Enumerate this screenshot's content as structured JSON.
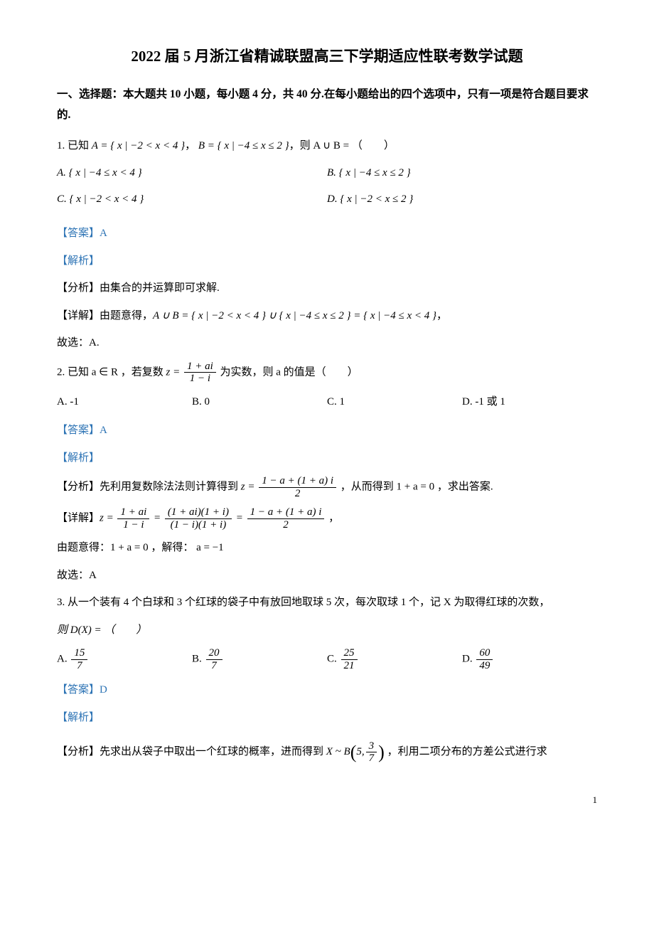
{
  "title": "2022 届 5 月浙江省精诚联盟高三下学期适应性联考数学试题",
  "section_header": "一、选择题：本大题共 10 小题，每小题 4 分，共 40 分.在每小题给出的四个选项中，只有一项是符合题目要求的.",
  "q1": {
    "stem_prefix": "1. 已知 ",
    "stem_A": "A = { x | −2 < x < 4 }",
    "stem_mid": "， ",
    "stem_B": "B = { x | −4 ≤ x ≤ 2 }",
    "stem_suffix": "，则 A ∪ B = （　　）",
    "optA": "A.  { x | −4 ≤ x < 4 }",
    "optB": "B.  { x | −4 ≤ x ≤ 2 }",
    "optC": "C.  { x | −2 < x < 4 }",
    "optD": "D.  { x | −2 < x ≤ 2 }",
    "answer": "【答案】A",
    "analysis_label": "【解析】",
    "fenxi": "【分析】由集合的并运算即可求解.",
    "detail_prefix": "【详解】由题意得，",
    "detail_math": "A ∪ B = { x | −2 < x < 4 } ∪ { x | −4 ≤ x ≤ 2 } = { x | −4 ≤ x < 4 }",
    "detail_suffix": "，",
    "conclude": "故选：A."
  },
  "q2": {
    "stem_prefix": "2. 已知 a ∈ R ，若复数 ",
    "z_eq": "z = ",
    "frac_num": "1 + ai",
    "frac_den": "1 − i",
    "stem_suffix": " 为实数，则 a 的值是（　　）",
    "optA": "A. -1",
    "optB": "B. 0",
    "optC": "C. 1",
    "optD": "D. -1 或 1",
    "answer": "【答案】A",
    "analysis_label": "【解析】",
    "fenxi_prefix": "【分析】先利用复数除法法则计算得到 ",
    "fenxi_z": "z = ",
    "fenxi_num": "1 − a + (1 + a) i",
    "fenxi_den": "2",
    "fenxi_suffix": " ，从而得到 1 + a = 0 ，求出答案.",
    "detail_prefix": "【详解】",
    "d_z": "z = ",
    "d_f1_num": "1 + ai",
    "d_f1_den": "1 − i",
    "d_eq1": " = ",
    "d_f2_num": "(1 + ai)(1 + i)",
    "d_f2_den": "(1 − i)(1 + i)",
    "d_eq2": " = ",
    "d_f3_num": "1 − a + (1 + a) i",
    "d_f3_den": "2",
    "d_suffix": " ，",
    "line2": "由题意得：1 + a = 0 ，解得： a = −1",
    "conclude": "故选：A"
  },
  "q3": {
    "stem": "3. 从一个装有 4 个白球和 3 个红球的袋子中有放回地取球 5 次，每次取球 1 个，记 X 为取得红球的次数，",
    "stem2": "则 D(X) = （　　）",
    "optA_label": "A. ",
    "optA_num": "15",
    "optA_den": "7",
    "optB_label": "B. ",
    "optB_num": "20",
    "optB_den": "7",
    "optC_label": "C. ",
    "optC_num": "25",
    "optC_den": "21",
    "optD_label": "D. ",
    "optD_num": "60",
    "optD_den": "49",
    "answer": "【答案】D",
    "analysis_label": "【解析】",
    "fenxi_prefix": "【分析】先求出从袋子中取出一个红球的概率，进而得到 ",
    "dist_pre": "X ~ B",
    "dist_n": "5,",
    "dist_num": "3",
    "dist_den": "7",
    "fenxi_suffix": " ，利用二项分布的方差公式进行求"
  },
  "page_num": "1",
  "colors": {
    "text": "#000000",
    "accent": "#2e74b5",
    "background": "#ffffff"
  }
}
